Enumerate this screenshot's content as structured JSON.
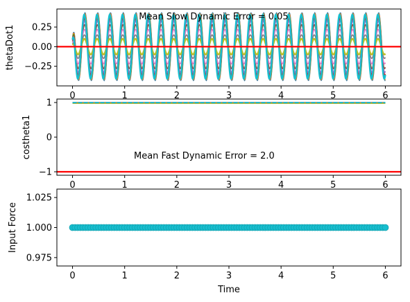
{
  "colors": {
    "reference": "#ff0000",
    "palette": [
      "#1f77b4",
      "#ff7f0e",
      "#2ca02c",
      "#d62728",
      "#9467bd",
      "#8c564b",
      "#e377c2",
      "#7f7f7f",
      "#bcbd22",
      "#17becf"
    ]
  },
  "chart_data": [
    {
      "type": "line",
      "ylabel": "thetaDot1",
      "annotation": "Mean Slow Dynamic Error = 0.05",
      "xlim": [
        -0.3,
        6.3
      ],
      "ylim": [
        -0.5,
        0.48
      ],
      "xticks": [
        0,
        1,
        2,
        3,
        4,
        5,
        6
      ],
      "yticks": [
        -0.25,
        0.0,
        0.25
      ],
      "ytick_labels": [
        "−0.25",
        "0.00",
        "0.25"
      ],
      "reference_line": 0.0,
      "oscillation": {
        "x_range": [
          0,
          6
        ],
        "cycles": 24.5,
        "amplitudes": [
          0.43,
          0.42,
          0.39,
          0.36,
          0.33,
          0.28,
          0.22,
          0.15,
          0.1,
          0.41
        ]
      }
    },
    {
      "type": "line",
      "ylabel": "costheta1",
      "annotation": "Mean Fast Dynamic Error = 2.0",
      "xlim": [
        -0.3,
        6.3
      ],
      "ylim": [
        -1.1,
        1.1
      ],
      "xticks": [
        0,
        1,
        2,
        3,
        4,
        5,
        6
      ],
      "yticks": [
        -1,
        0,
        1
      ],
      "ytick_labels": [
        "−1",
        "0",
        "1"
      ],
      "reference_line": -1.0,
      "series_level": 0.99
    },
    {
      "type": "scatter",
      "ylabel": "Input Force",
      "xlabel": "Time",
      "xlim": [
        -0.3,
        6.3
      ],
      "ylim": [
        0.968,
        1.032
      ],
      "xticks": [
        0,
        1,
        2,
        3,
        4,
        5,
        6
      ],
      "yticks": [
        0.975,
        1.0,
        1.025
      ],
      "ytick_labels": [
        "0.975",
        "1.000",
        "1.025"
      ],
      "points": {
        "x_range": [
          0,
          6
        ],
        "y": 1.0
      }
    }
  ]
}
